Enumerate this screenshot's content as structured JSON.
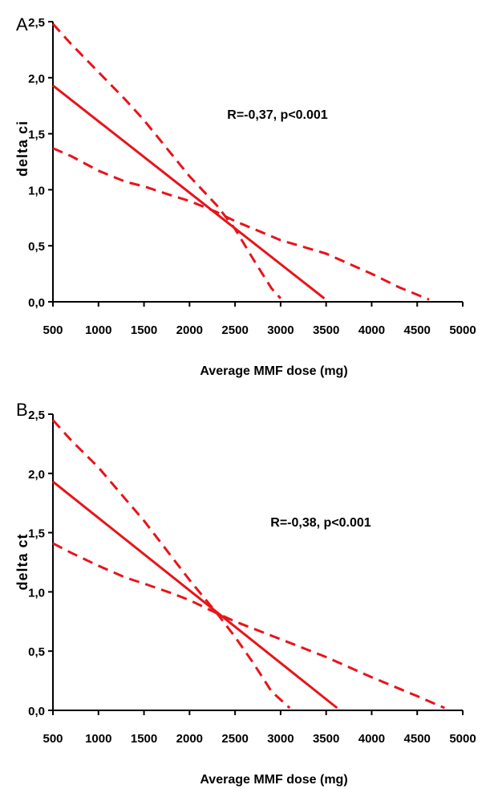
{
  "chart_data": [
    {
      "type": "line",
      "panel": "A",
      "xlabel": "Average MMF dose (mg)",
      "ylabel": "delta ci",
      "xlim": [
        500,
        5000
      ],
      "ylim": [
        0,
        2.5
      ],
      "x_ticks": [
        500,
        1000,
        1500,
        2000,
        2500,
        3000,
        3500,
        4000,
        4500,
        5000
      ],
      "x_tick_labels": [
        "500",
        "1000",
        "1500",
        "2000",
        "2500",
        "3000",
        "3500",
        "4000",
        "4500",
        "5000"
      ],
      "y_ticks": [
        0,
        0.5,
        1.0,
        1.5,
        2.0,
        2.5
      ],
      "y_tick_labels": [
        "0,0",
        "0,5",
        "1,0",
        "1,5",
        "2,0",
        "2,5"
      ],
      "annotation": "R=-0,37, p<0.001",
      "grid": false,
      "colors": {
        "lines": "#e8141a",
        "axes": "#000000"
      },
      "series": [
        {
          "style": "solid",
          "x": [
            500,
            3480
          ],
          "y": [
            1.93,
            0.03
          ]
        },
        {
          "style": "dashed",
          "x": [
            500,
            700,
            1000,
            1300,
            1500,
            1800,
            2000,
            2300,
            2500,
            2700,
            2900,
            3000
          ],
          "y": [
            2.48,
            2.3,
            2.05,
            1.8,
            1.62,
            1.32,
            1.12,
            0.86,
            0.65,
            0.38,
            0.12,
            0.03
          ]
        },
        {
          "style": "dashed",
          "x": [
            500,
            700,
            1000,
            1300,
            1500,
            1800,
            2000,
            2300,
            2500,
            3000,
            3500,
            4000,
            4300,
            4630
          ],
          "y": [
            1.37,
            1.3,
            1.17,
            1.07,
            1.03,
            0.95,
            0.9,
            0.8,
            0.72,
            0.55,
            0.43,
            0.25,
            0.13,
            0.02
          ]
        }
      ]
    },
    {
      "type": "line",
      "panel": "B",
      "xlabel": "Average MMF dose (mg)",
      "ylabel": "delta ct",
      "xlim": [
        500,
        5000
      ],
      "ylim": [
        0,
        2.5
      ],
      "x_ticks": [
        500,
        1000,
        1500,
        2000,
        2500,
        3000,
        3500,
        4000,
        4500,
        5000
      ],
      "x_tick_labels": [
        "500",
        "1000",
        "1500",
        "2000",
        "2500",
        "3000",
        "3500",
        "4000",
        "4500",
        "5000"
      ],
      "y_ticks": [
        0,
        0.5,
        1.0,
        1.5,
        2.0,
        2.5
      ],
      "y_tick_labels": [
        "0,0",
        "0,5",
        "1,0",
        "1,5",
        "2,0",
        "2,5"
      ],
      "annotation": "R=-0,38, p<0.001",
      "grid": false,
      "colors": {
        "lines": "#e8141a",
        "axes": "#000000"
      },
      "series": [
        {
          "style": "solid",
          "x": [
            500,
            3620
          ],
          "y": [
            1.93,
            0.02
          ]
        },
        {
          "style": "dashed",
          "x": [
            500,
            700,
            1000,
            1300,
            1500,
            1800,
            2000,
            2300,
            2500,
            2700,
            2900,
            3100
          ],
          "y": [
            2.45,
            2.28,
            2.05,
            1.78,
            1.6,
            1.3,
            1.1,
            0.82,
            0.62,
            0.4,
            0.16,
            0.02
          ]
        },
        {
          "style": "dashed",
          "x": [
            500,
            700,
            1000,
            1300,
            1500,
            1800,
            2000,
            2300,
            2500,
            3000,
            3500,
            4000,
            4500,
            4800
          ],
          "y": [
            1.41,
            1.33,
            1.22,
            1.12,
            1.07,
            0.99,
            0.93,
            0.82,
            0.75,
            0.6,
            0.45,
            0.28,
            0.12,
            0.02
          ]
        }
      ]
    }
  ]
}
